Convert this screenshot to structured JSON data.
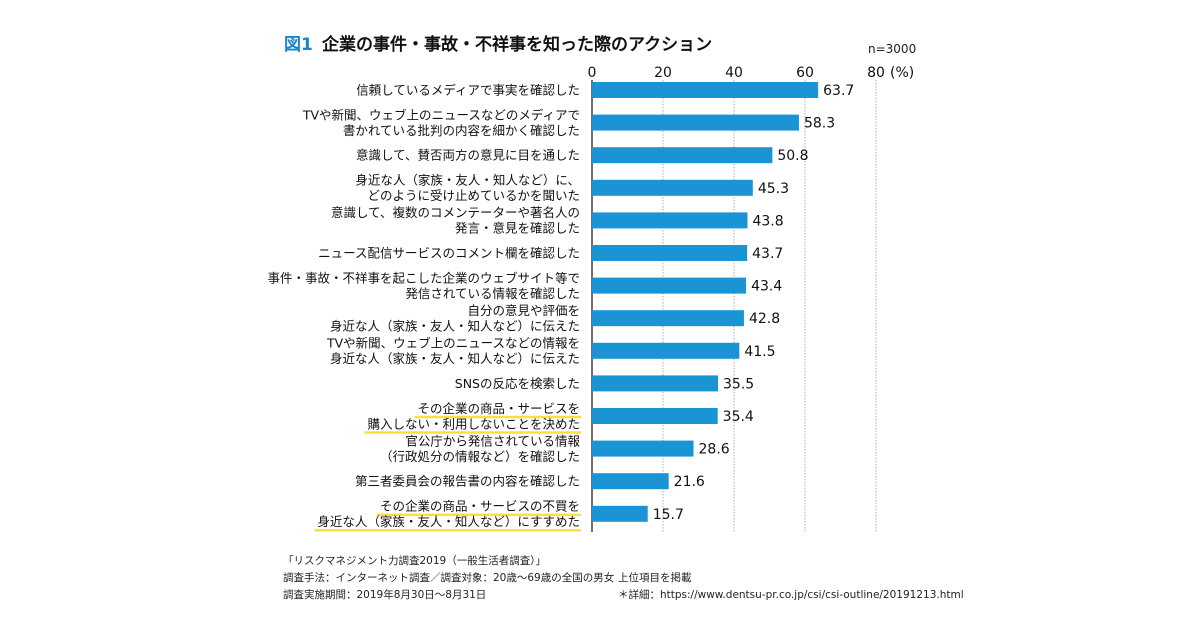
{
  "figure_label": "図1",
  "title": "企業の事件・事故・不祥事を知った際のアクション",
  "sample_size": "n=3000",
  "unit_label": "(%)",
  "colors": {
    "bar": "#1a94d4",
    "highlight": "#f7e23b",
    "grid": "#9a9a9a",
    "accent": "#1a86c8"
  },
  "chart_data": {
    "type": "bar",
    "orientation": "horizontal",
    "title": "企業の事件・事故・不祥事を知った際のアクション",
    "xlim": [
      0,
      80
    ],
    "xticks": [
      "0",
      "20",
      "40",
      "60",
      "80"
    ],
    "grid": true,
    "categories": [
      [
        "信頼しているメディアで事実を確認した"
      ],
      [
        "TVや新聞、ウェブ上のニュースなどのメディアで",
        "書かれている批判の内容を細かく確認した"
      ],
      [
        "意識して、賛否両方の意見に目を通した"
      ],
      [
        "身近な人（家族・友人・知人など）に、",
        "どのように受け止めているかを聞いた"
      ],
      [
        "意識して、複数のコメンテーターや著名人の",
        "発言・意見を確認した"
      ],
      [
        "ニュース配信サービスのコメント欄を確認した"
      ],
      [
        "事件・事故・不祥事を起こした企業のウェブサイト等で",
        "発信されている情報を確認した"
      ],
      [
        "自分の意見や評価を",
        "身近な人（家族・友人・知人など）に伝えた"
      ],
      [
        "TVや新聞、ウェブ上のニュースなどの情報を",
        "身近な人（家族・友人・知人など）に伝えた"
      ],
      [
        "SNSの反応を検索した"
      ],
      [
        "その企業の商品・サービスを",
        "購入しない・利用しないことを決めた"
      ],
      [
        "官公庁から発信されている情報",
        "（行政処分の情報など）を確認した"
      ],
      [
        "第三者委員会の報告書の内容を確認した"
      ],
      [
        "その企業の商品・サービスの不買を",
        "身近な人（家族・友人・知人など）にすすめた"
      ]
    ],
    "values": [
      63.7,
      58.3,
      50.8,
      45.3,
      43.8,
      43.7,
      43.4,
      42.8,
      41.5,
      35.5,
      35.4,
      28.6,
      21.6,
      15.7
    ],
    "value_labels": [
      "63.7",
      "58.3",
      "50.8",
      "45.3",
      "43.8",
      "43.7",
      "43.4",
      "42.8",
      "41.5",
      "35.5",
      "35.4",
      "28.6",
      "21.6",
      "15.7"
    ],
    "highlighted": [
      false,
      false,
      false,
      false,
      false,
      false,
      false,
      false,
      false,
      false,
      true,
      false,
      false,
      true
    ]
  },
  "footer": {
    "source": "「リスクマネジメント力調査2019（一般生活者調査）」",
    "method": "調査手法：インターネット調査／調査対象：20歳〜69歳の全国の男女",
    "period": "調査実施期間：2019年8月30日〜8月31日",
    "note": "上位項目を掲載",
    "detail": "＊詳細：https://www.dentsu-pr.co.jp/csi/csi-outline/20191213.html"
  }
}
